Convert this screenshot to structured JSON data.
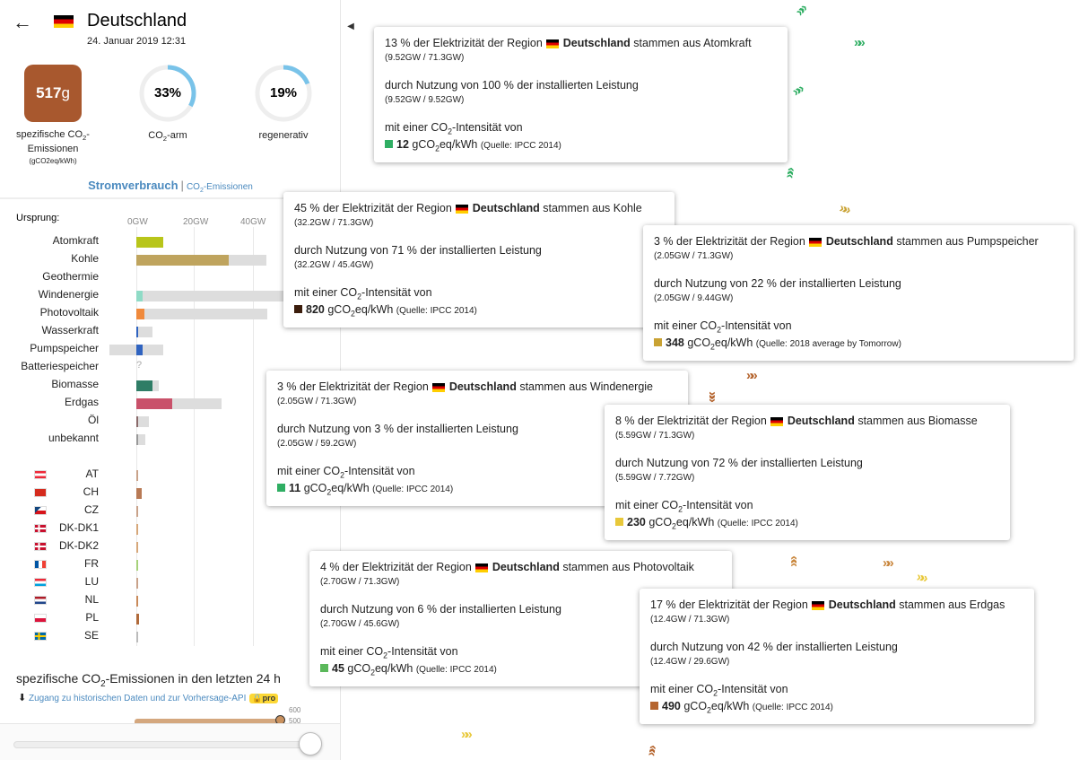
{
  "header": {
    "title": "Deutschland",
    "date": "24. Januar 2019 12:31"
  },
  "stats": {
    "co2_value": "517",
    "co2_unit": "g",
    "co2_label_1": "spezifische CO",
    "co2_label_2": "-",
    "co2_label_3": "Emissionen",
    "co2_unit_label": "(gCO2eq/kWh)",
    "low_carbon_pct": "33%",
    "low_carbon_label_1": "CO",
    "low_carbon_label_2": "-arm",
    "low_carbon_fraction": 0.33,
    "renewable_pct": "19%",
    "renewable_label": "regenerativ",
    "renewable_fraction": 0.19,
    "accent": "#79c3e9",
    "co2_color": "#a8582e"
  },
  "tabs": {
    "active": "Stromverbrauch",
    "sep": "|",
    "inactive": "CO2-Emissionen"
  },
  "chart": {
    "origin_label": "Ursprung:",
    "ticks": [
      "0GW",
      "20GW",
      "40GW"
    ]
  },
  "sources": [
    {
      "label": "Atomkraft",
      "capacity": 9.52,
      "value": 9.52,
      "color": "#b8c51a"
    },
    {
      "label": "Kohle",
      "capacity": 45.4,
      "value": 32.2,
      "color": "#bfa45e"
    },
    {
      "label": "Geothermie",
      "capacity": 0,
      "value": 0,
      "color": "#ccc"
    },
    {
      "label": "Windenergie",
      "capacity": 59.2,
      "value": 2.05,
      "color": "#8fdbc6"
    },
    {
      "label": "Photovoltaik",
      "capacity": 45.6,
      "value": 2.7,
      "color": "#f08a3c"
    },
    {
      "label": "Wasserkraft",
      "capacity": 5.5,
      "value": 0.5,
      "color": "#2f63c0"
    },
    {
      "label": "Pumpspeicher",
      "capacity": 9.44,
      "value": 2.05,
      "neg": -9.5,
      "color": "#2f63c0"
    },
    {
      "label": "Batteriespeicher",
      "capacity": 0,
      "value": 0,
      "unknown": "?",
      "color": "#ccc"
    },
    {
      "label": "Biomasse",
      "capacity": 7.72,
      "value": 5.59,
      "color": "#2f7d66"
    },
    {
      "label": "Erdgas",
      "capacity": 29.6,
      "value": 12.4,
      "color": "#c9516a"
    },
    {
      "label": "Öl",
      "capacity": 4.4,
      "value": 0.5,
      "color": "#8a6a6a"
    },
    {
      "label": "unbekannt",
      "capacity": 3.1,
      "value": 0.5,
      "color": "#999"
    }
  ],
  "exchanges": [
    {
      "label": "AT",
      "value": 0.3,
      "color": "#c9a28a"
    },
    {
      "label": "CH",
      "value": 1.8,
      "color": "#b87a55"
    },
    {
      "label": "CZ",
      "value": 0.2,
      "color": "#c9a28a"
    },
    {
      "label": "DK-DK1",
      "value": 0.4,
      "color": "#d6a77a"
    },
    {
      "label": "DK-DK2",
      "value": 0.5,
      "color": "#d6a77a"
    },
    {
      "label": "FR",
      "value": 0.6,
      "color": "#a6d17a"
    },
    {
      "label": "LU",
      "value": 0.4,
      "color": "#c9a28a"
    },
    {
      "label": "NL",
      "value": 0.6,
      "color": "#c98a5a"
    },
    {
      "label": "PL",
      "value": 0.9,
      "color": "#b06a3a"
    },
    {
      "label": "SE",
      "value": 0.5,
      "color": "#bbb"
    }
  ],
  "history": {
    "title_1": "spezifische CO",
    "title_2": "-Emissionen in den letzten 24 h",
    "link": "Zugang zu historischen Daten und zur Vorhersage-API",
    "pro": "pro",
    "tick_600": "600",
    "tick_500": "500"
  },
  "tooltips": [
    {
      "l1a": "13 % der Elektrizität der Region",
      "l1b": "Deutschland",
      "l1c": "stammen aus Atomkraft",
      "s1": "(9.52GW / 71.3GW)",
      "l2": "durch Nutzung von 100 % der installierten Leistung",
      "s2": "(9.52GW / 9.52GW)",
      "l3": "mit einer CO",
      "l3b": "-Intensität von",
      "v": "12",
      "u": "gCO",
      "u2": "eq/kWh",
      "src": "(Quelle: IPCC 2014)",
      "color": "#2fae63"
    },
    {
      "l1a": "45 % der Elektrizität der Region",
      "l1b": "Deutschland",
      "l1c": "stammen aus Kohle",
      "s1": "(32.2GW / 71.3GW)",
      "l2": "durch Nutzung von 71 % der installierten Leistung",
      "s2": "(32.2GW / 45.4GW)",
      "l3": "mit einer CO",
      "l3b": "-Intensität von",
      "v": "820",
      "u": "gCO",
      "u2": "eq/kWh",
      "src": "(Quelle: IPCC 2014)",
      "color": "#3b1d0c"
    },
    {
      "l1a": "3 % der Elektrizität der Region",
      "l1b": "Deutschland",
      "l1c": "stammen aus Pumpspeicher",
      "s1": "(2.05GW / 71.3GW)",
      "l2": "durch Nutzung von 22 % der installierten Leistung",
      "s2": "(2.05GW / 9.44GW)",
      "l3": "mit einer CO",
      "l3b": "-Intensität von",
      "v": "348",
      "u": "gCO",
      "u2": "eq/kWh",
      "src": "(Quelle: 2018 average by Tomorrow)",
      "color": "#c9a233"
    },
    {
      "l1a": "3 % der Elektrizität der Region",
      "l1b": "Deutschland",
      "l1c": "stammen aus Windenergie",
      "s1": "(2.05GW / 71.3GW)",
      "l2": "durch Nutzung von 3 % der installierten Leistung",
      "s2": "(2.05GW / 59.2GW)",
      "l3": "mit einer CO",
      "l3b": "-Intensität von",
      "v": "11",
      "u": "gCO",
      "u2": "eq/kWh",
      "src": "(Quelle: IPCC 2014)",
      "color": "#2fae63"
    },
    {
      "l1a": "8 % der Elektrizität der Region",
      "l1b": "Deutschland",
      "l1c": "stammen aus Biomasse",
      "s1": "(5.59GW / 71.3GW)",
      "l2": "durch Nutzung von 72 % der installierten Leistung",
      "s2": "(5.59GW / 7.72GW)",
      "l3": "mit einer CO",
      "l3b": "-Intensität von",
      "v": "230",
      "u": "gCO",
      "u2": "eq/kWh",
      "src": "(Quelle: IPCC 2014)",
      "color": "#e8c83a"
    },
    {
      "l1a": "4 % der Elektrizität der Region",
      "l1b": "Deutschland",
      "l1c": "stammen aus Photovoltaik",
      "s1": "(2.70GW / 71.3GW)",
      "l2": "durch Nutzung von 6 % der installierten Leistung",
      "s2": "(2.70GW / 45.6GW)",
      "l3": "mit einer CO",
      "l3b": "-Intensität von",
      "v": "45",
      "u": "gCO",
      "u2": "eq/kWh",
      "src": "(Quelle: IPCC 2014)",
      "color": "#5bb85b"
    },
    {
      "l1a": "17 % der Elektrizität der Region",
      "l1b": "Deutschland",
      "l1c": "stammen aus Erdgas",
      "s1": "(12.4GW / 71.3GW)",
      "l2": "durch Nutzung von 42 % der installierten Leistung",
      "s2": "(12.4GW / 29.6GW)",
      "l3": "mit einer CO",
      "l3b": "-Intensität von",
      "v": "490",
      "u": "gCO",
      "u2": "eq/kWh",
      "src": "(Quelle: IPCC 2014)",
      "color": "#b5652f"
    }
  ],
  "icons": {
    "back": "arrow-left-icon",
    "toggle": "chevron-left-icon",
    "download": "download-icon",
    "arrow": "chevron-arrow-icon"
  }
}
